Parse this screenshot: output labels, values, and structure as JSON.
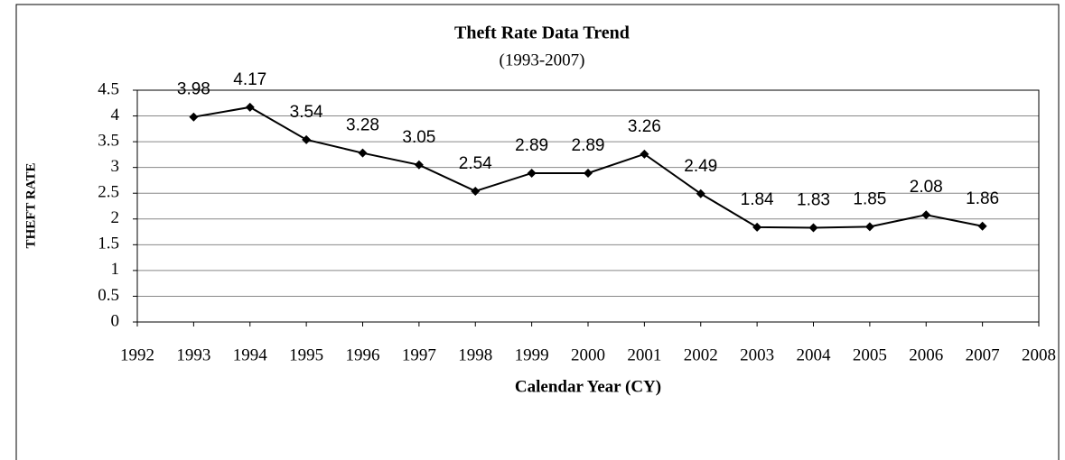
{
  "chart_data": {
    "type": "line",
    "title": "Theft Rate Data Trend",
    "subtitle": "(1993-2007)",
    "x_label": "Calendar Year (CY)",
    "y_label": "THEFT RATE",
    "x": [
      1993,
      1994,
      1995,
      1996,
      1997,
      1998,
      1999,
      2000,
      2001,
      2002,
      2003,
      2004,
      2005,
      2006,
      2007
    ],
    "series": [
      {
        "name": "Theft Rate",
        "color": "#000000",
        "values": [
          3.98,
          4.17,
          3.54,
          3.28,
          3.05,
          2.54,
          2.89,
          2.89,
          3.26,
          2.49,
          1.84,
          1.83,
          1.85,
          2.08,
          1.86
        ]
      }
    ],
    "xlim": [
      1992,
      2008
    ],
    "xticks": [
      1992,
      1993,
      1994,
      1995,
      1996,
      1997,
      1998,
      1999,
      2000,
      2001,
      2002,
      2003,
      2004,
      2005,
      2006,
      2007,
      2008
    ],
    "ylim": [
      0,
      4.5
    ],
    "yticks": [
      0,
      0.5,
      1,
      1.5,
      2,
      2.5,
      3,
      3.5,
      4,
      4.5
    ],
    "grid": true
  }
}
